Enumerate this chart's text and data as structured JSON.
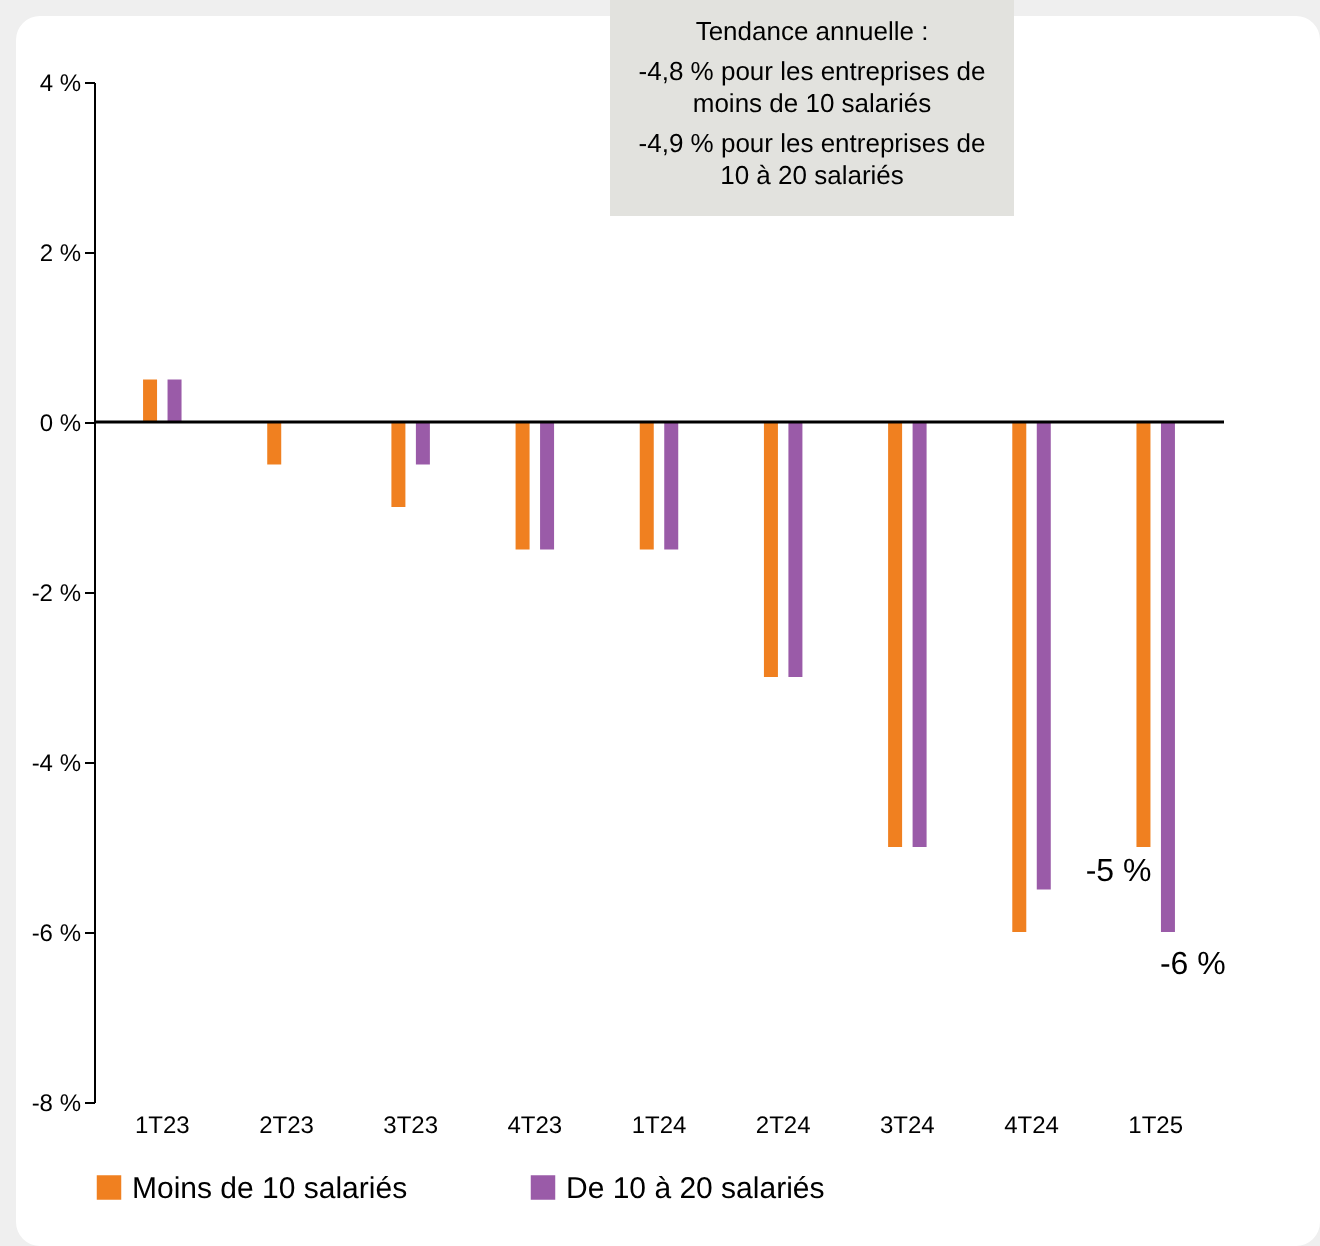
{
  "chart_data": {
    "type": "bar",
    "categories": [
      "1T23",
      "2T23",
      "3T23",
      "4T23",
      "1T24",
      "2T24",
      "3T24",
      "4T24",
      "1T25"
    ],
    "series": [
      {
        "name": "Moins de 10 salariés",
        "color": "#f08020",
        "values": [
          0.5,
          -0.5,
          -1,
          -1.5,
          -1.5,
          -3,
          -5,
          -6,
          -5
        ],
        "value_labels": [
          null,
          null,
          null,
          null,
          null,
          null,
          null,
          null,
          "-5 %"
        ]
      },
      {
        "name": "De 10 à 20 salariés",
        "color": "#9a5ba8",
        "values": [
          0.5,
          0,
          -0.5,
          -1.5,
          -1.5,
          -3,
          -5,
          -5.5,
          -6
        ],
        "value_labels": [
          null,
          null,
          null,
          null,
          null,
          null,
          null,
          null,
          "-6 %"
        ]
      }
    ],
    "ylim": [
      -8,
      4
    ],
    "yticks": [
      {
        "value": -8,
        "label": "-8 %"
      },
      {
        "value": -6,
        "label": "-6 %"
      },
      {
        "value": -4,
        "label": "-4 %"
      },
      {
        "value": -2,
        "label": "-2 %"
      },
      {
        "value": 0,
        "label": "0 %"
      },
      {
        "value": 2,
        "label": "2 %"
      },
      {
        "value": 4,
        "label": "4 %"
      }
    ],
    "ref_lines": [
      {
        "axis": "y",
        "value": 0,
        "color": "#000000"
      }
    ],
    "grid": false,
    "legend": "bottom",
    "annotations": [
      "Tendance annuelle :",
      "-4,8 % pour les entreprises de moins de 10 salariés",
      "-4,9 % pour les entreprises de 10 à 20 salariés"
    ]
  }
}
